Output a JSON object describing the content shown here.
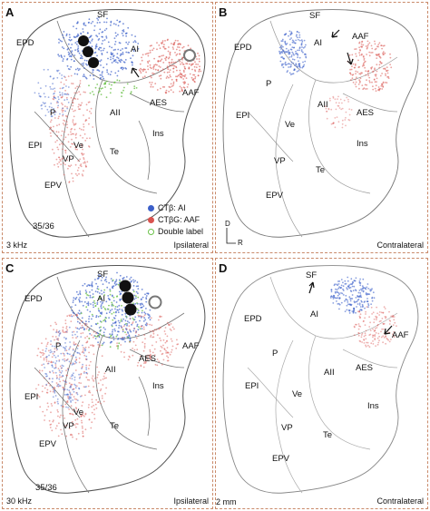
{
  "panels": {
    "A": {
      "letter": "A",
      "freq": "3 kHz",
      "side": "Ipsilateral",
      "section": "35/36",
      "areas": [
        "SF",
        "AI",
        "EPD",
        "AAF",
        "P",
        "AII",
        "AES",
        "EPI",
        "Ve",
        "Ins",
        "VP",
        "Te",
        "EPV"
      ]
    },
    "B": {
      "letter": "B",
      "side": "Contralateral",
      "areas": [
        "SF",
        "AI",
        "AAF",
        "EPD",
        "P",
        "AII",
        "AES",
        "EPI",
        "Ve",
        "Ins",
        "VP",
        "Te",
        "EPV"
      ]
    },
    "C": {
      "letter": "C",
      "freq": "30 kHz",
      "side": "Ipsilateral",
      "section": "35/36",
      "areas": [
        "SF",
        "AI",
        "EPD",
        "AAF",
        "P",
        "AII",
        "AES",
        "EPI",
        "Ins",
        "Ve",
        "VP",
        "Te",
        "EPV"
      ]
    },
    "D": {
      "letter": "D",
      "side": "Contralateral",
      "areas": [
        "SF",
        "AI",
        "AAF",
        "EPD",
        "P",
        "AII",
        "AES",
        "EPI",
        "Ve",
        "Ins",
        "VP",
        "Te",
        "EPV"
      ]
    }
  },
  "legend": {
    "ctb_ai": "CTβ:  AI",
    "ctbg_aaf": "CTβG:  AAF",
    "double": "Double label"
  },
  "orientation": {
    "d": "D",
    "r": "R"
  },
  "scale_bar": "2 mm",
  "colors": {
    "blue": "#3b5fc9",
    "red": "#d9534f",
    "green": "#6cc24a",
    "border": "#c98a6a"
  }
}
